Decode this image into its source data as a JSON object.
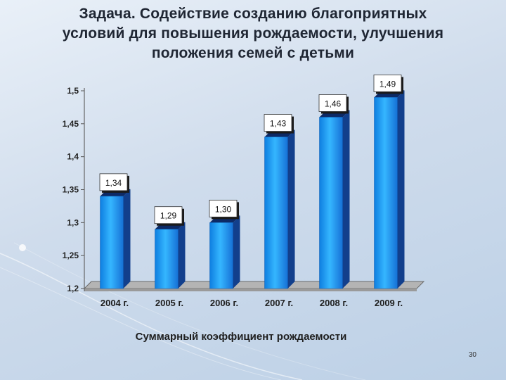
{
  "slide": {
    "title_lines": [
      "Задача. Содействие созданию благоприятных",
      "условий для повышения рождаемости, улучшения",
      "положения семей с детьми"
    ],
    "page_number": "30"
  },
  "chart_data": {
    "type": "bar",
    "categories": [
      "2004 г.",
      "2005 г.",
      "2006 г.",
      "2007 г.",
      "2008 г.",
      "2009 г."
    ],
    "values": [
      1.34,
      1.29,
      1.3,
      1.43,
      1.46,
      1.49
    ],
    "data_labels": [
      "1,34",
      "1,29",
      "1,30",
      "1,43",
      "1,46",
      "1,49"
    ],
    "y_ticks": [
      "1,2",
      "1,25",
      "1,3",
      "1,35",
      "1,4",
      "1,45",
      "1,5"
    ],
    "ylim": [
      1.2,
      1.5
    ],
    "xlabel": "Суммарный коэффициент рождаемости",
    "ylabel": "",
    "grid": false,
    "legend": "none",
    "colors": {
      "bar_front": "#1f95ea",
      "bar_side": "#123f8c",
      "bar_top": "#0d2a66",
      "floor": "#9a9a9a"
    }
  }
}
